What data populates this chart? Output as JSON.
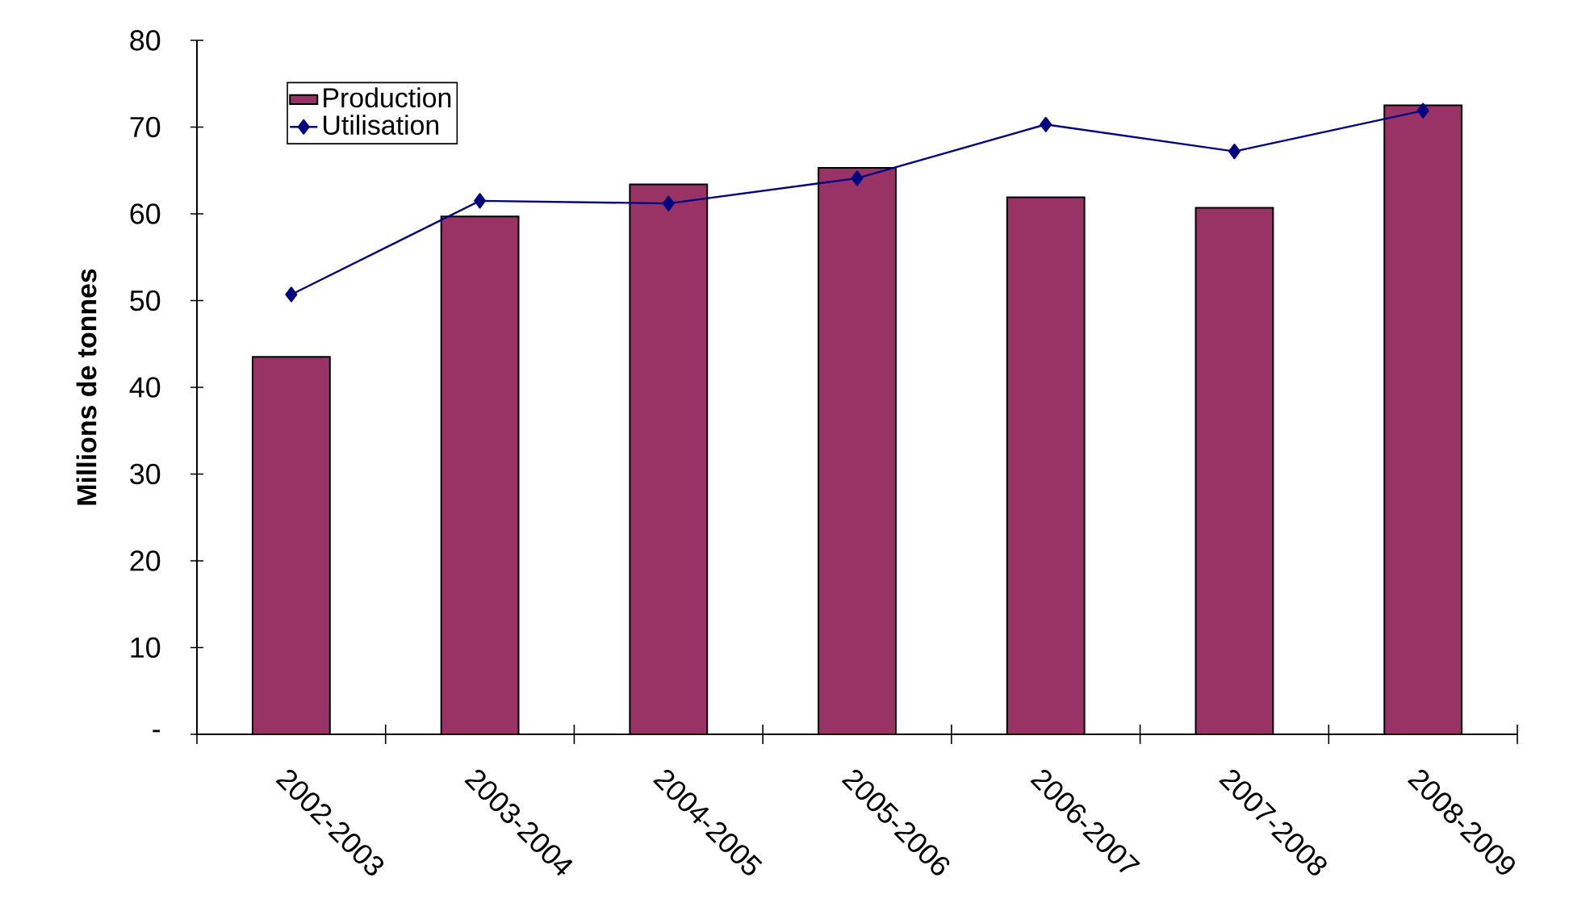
{
  "chart_data": {
    "type": "bar",
    "ylabel": "Millions de tonnes",
    "categories": [
      "2002-2003",
      "2003-2004",
      "2004-2005",
      "2005-2006",
      "2006-2007",
      "2007-2008",
      "2008-2009"
    ],
    "series": [
      {
        "name": "Production",
        "color": "#993366",
        "values": [
          43.5,
          59.7,
          63.4,
          65.3,
          61.9,
          60.7,
          72.5
        ]
      },
      {
        "name": "Utilisation",
        "type": "line",
        "color": "#000080",
        "marker": "diamond",
        "values": [
          50.7,
          61.5,
          61.2,
          64.1,
          70.3,
          67.2,
          71.9
        ]
      }
    ],
    "ylim": [
      0,
      80
    ],
    "yticks": [
      {
        "value": 0,
        "label": "-"
      },
      10,
      20,
      30,
      40,
      50,
      60,
      70,
      80
    ],
    "grid": false,
    "legend": "top left"
  }
}
